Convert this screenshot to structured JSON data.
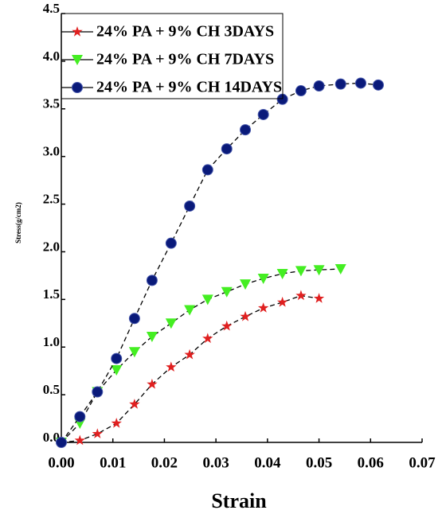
{
  "chart_data": {
    "type": "line",
    "xlabel": "Strain",
    "ylabel": "Stress(g/cm2)",
    "xlim": [
      0,
      0.07
    ],
    "ylim": [
      0,
      4.5
    ],
    "xticks": [
      {
        "value": 0,
        "label": "0.00"
      },
      {
        "value": 0.01,
        "label": "0.01"
      },
      {
        "value": 0.02,
        "label": "0.02"
      },
      {
        "value": 0.03,
        "label": "0.03"
      },
      {
        "value": 0.04,
        "label": "0.04"
      },
      {
        "value": 0.05,
        "label": "0.05"
      },
      {
        "value": 0.06,
        "label": "0.06"
      },
      {
        "value": 0.07,
        "label": "0.07"
      }
    ],
    "yticks": [
      {
        "value": 0,
        "label": "0.0"
      },
      {
        "value": 0.5,
        "label": "0.5"
      },
      {
        "value": 1,
        "label": "1.0"
      },
      {
        "value": 1.5,
        "label": "1.5"
      },
      {
        "value": 2,
        "label": "2.0"
      },
      {
        "value": 2.5,
        "label": "2.5"
      },
      {
        "value": 3,
        "label": "3.0"
      },
      {
        "value": 3.5,
        "label": "3.5"
      },
      {
        "value": 4,
        "label": "4.0"
      },
      {
        "value": 4.5,
        "label": "4.5"
      }
    ],
    "legend": "upper left",
    "series": [
      {
        "name": "24% PA + 9% CH 3DAYS",
        "color": "#e02020",
        "marker": "star",
        "x": [
          0,
          0.0036,
          0.007,
          0.0107,
          0.0142,
          0.0176,
          0.0213,
          0.0249,
          0.0284,
          0.0321,
          0.0357,
          0.0392,
          0.0429,
          0.0465,
          0.05
        ],
        "values": [
          0,
          0.02,
          0.09,
          0.2,
          0.4,
          0.61,
          0.79,
          0.92,
          1.09,
          1.22,
          1.32,
          1.41,
          1.47,
          1.54,
          1.51
        ]
      },
      {
        "name": "24% PA + 9% CH 7DAYS",
        "color": "#44ee22",
        "marker": "triangle-down",
        "x": [
          0,
          0.0036,
          0.007,
          0.0107,
          0.0142,
          0.0176,
          0.0213,
          0.0249,
          0.0284,
          0.0321,
          0.0357,
          0.0392,
          0.0429,
          0.0465,
          0.05,
          0.0542
        ],
        "values": [
          0,
          0.2,
          0.53,
          0.76,
          0.95,
          1.11,
          1.25,
          1.39,
          1.5,
          1.58,
          1.66,
          1.72,
          1.77,
          1.8,
          1.81,
          1.82
        ]
      },
      {
        "name": "24% PA + 9% CH 14DAYS",
        "color": "#0a1a7a",
        "marker": "circle",
        "x": [
          0,
          0.0036,
          0.007,
          0.0107,
          0.0142,
          0.0176,
          0.0213,
          0.0249,
          0.0284,
          0.0321,
          0.0357,
          0.0392,
          0.0429,
          0.0465,
          0.05,
          0.0542,
          0.0581,
          0.0615
        ],
        "values": [
          0,
          0.27,
          0.53,
          0.88,
          1.3,
          1.7,
          2.09,
          2.48,
          2.86,
          3.08,
          3.28,
          3.44,
          3.6,
          3.69,
          3.74,
          3.76,
          3.77,
          3.75
        ]
      }
    ]
  }
}
